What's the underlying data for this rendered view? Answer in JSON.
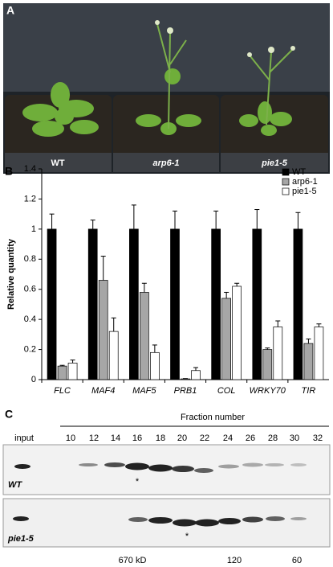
{
  "panels": [
    "A",
    "B",
    "C"
  ],
  "photo_labels": [
    "WT",
    "arp6-1",
    "pie1-5"
  ],
  "chart_data": {
    "type": "bar",
    "y_label": "Relative quantity",
    "categories": [
      "FLC",
      "MAF4",
      "MAF5",
      "PRB1",
      "COL",
      "WRKY70",
      "TIR"
    ],
    "series": [
      {
        "name": "WT",
        "color": "#000000",
        "values": [
          1,
          1,
          1,
          1,
          1,
          1,
          1
        ],
        "errors": [
          0.1,
          0.06,
          0.16,
          0.12,
          0.12,
          0.13,
          0.11
        ]
      },
      {
        "name": "arp6-1",
        "color": "#a6a6a6",
        "values": [
          0.09,
          0.66,
          0.58,
          0.005,
          0.54,
          0.2,
          0.24
        ],
        "errors": [
          0.005,
          0.16,
          0.06,
          0.002,
          0.04,
          0.01,
          0.03
        ]
      },
      {
        "name": "pie1-5",
        "color": "#ffffff",
        "values": [
          0.11,
          0.32,
          0.18,
          0.06,
          0.62,
          0.35,
          0.35
        ],
        "errors": [
          0.02,
          0.09,
          0.05,
          0.02,
          0.02,
          0.04,
          0.02
        ]
      }
    ],
    "ylim": [
      0,
      1.4
    ],
    "yticks": [
      0,
      0.2,
      0.4,
      0.6,
      0.8,
      1,
      1.2,
      1.4
    ],
    "legend": "top-right"
  },
  "blot": {
    "input_label": "input",
    "header": "Fraction number",
    "fractions": [
      "10",
      "12",
      "14",
      "16",
      "18",
      "20",
      "22",
      "24",
      "26",
      "28",
      "30",
      "32"
    ],
    "rows": [
      "WT",
      "pie1-5"
    ],
    "asterisk": "*",
    "markers": [
      "670 kD",
      "120",
      "60"
    ]
  }
}
